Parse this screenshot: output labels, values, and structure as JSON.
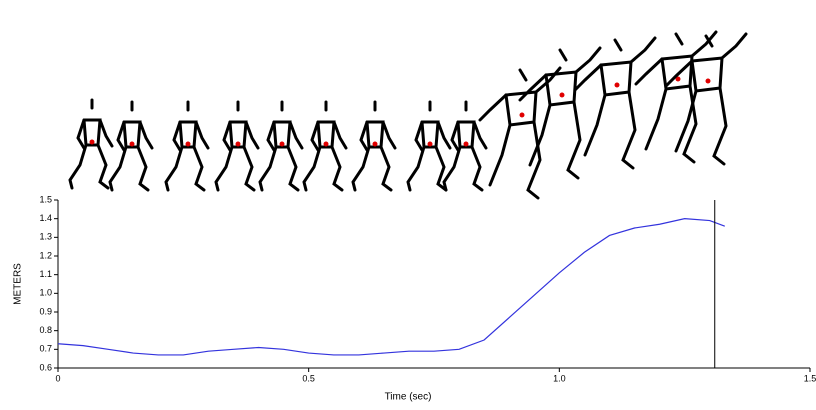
{
  "chart_data": {
    "type": "line",
    "x_label": "Time (sec)",
    "y_label": "METERS",
    "x": [
      0,
      0.05,
      0.1,
      0.15,
      0.2,
      0.25,
      0.3,
      0.35,
      0.4,
      0.45,
      0.5,
      0.55,
      0.6,
      0.65,
      0.7,
      0.75,
      0.8,
      0.85,
      0.9,
      0.95,
      1.0,
      1.05,
      1.1,
      1.15,
      1.2,
      1.25,
      1.3,
      1.33
    ],
    "series": [
      {
        "color": "#3333dd",
        "values": [
          0.73,
          0.72,
          0.7,
          0.68,
          0.67,
          0.67,
          0.69,
          0.7,
          0.71,
          0.7,
          0.68,
          0.67,
          0.67,
          0.68,
          0.69,
          0.69,
          0.7,
          0.75,
          0.87,
          0.99,
          1.11,
          1.22,
          1.31,
          1.35,
          1.37,
          1.4,
          1.39,
          1.36
        ]
      }
    ],
    "xlim": [
      0,
      1.5
    ],
    "ylim": [
      0.6,
      1.5
    ],
    "xticks": [
      0,
      0.5,
      {
        "value": 1,
        "label": "1.0"
      },
      1.5
    ],
    "yticks": [
      0.6,
      0.7,
      0.8,
      0.9,
      {
        "value": 1,
        "label": "1.0"
      },
      1.1,
      1.2,
      1.3,
      1.4,
      1.5
    ],
    "marker_x": 1.31,
    "marker_color": "#000000"
  }
}
